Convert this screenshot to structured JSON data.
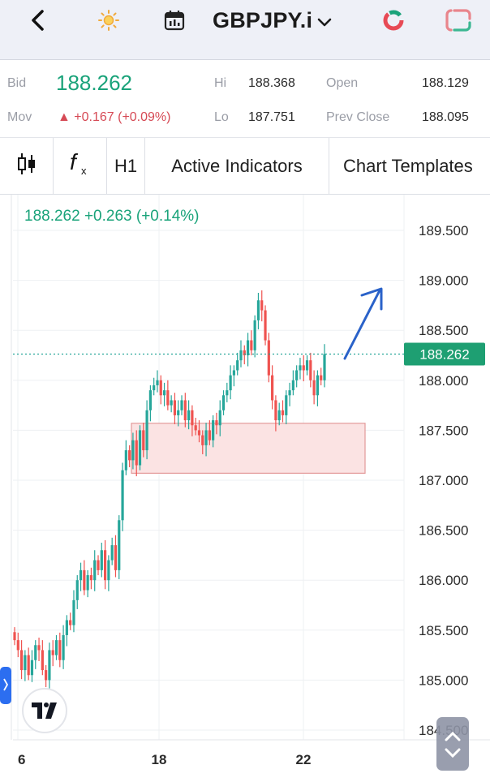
{
  "header": {
    "symbol": "GBPJPY.i",
    "icons": [
      "back-arrow-icon",
      "sun-icon",
      "calendar-icon",
      "chevron-down-icon",
      "ring-icon",
      "square-outline-icon"
    ]
  },
  "quote": {
    "bid_label": "Bid",
    "bid_value": "188.262",
    "mov_label": "Mov",
    "mov_value": "▲ +0.167 (+0.09%)",
    "hi_label": "Hi",
    "hi_value": "188.368",
    "lo_label": "Lo",
    "lo_value": "187.751",
    "open_label": "Open",
    "open_value": "188.129",
    "prev_close_label": "Prev Close",
    "prev_close_value": "188.095",
    "colors": {
      "bid": "#1aa37a",
      "mov": "#d64a55"
    }
  },
  "toolbar": {
    "timeframe": "H1",
    "active_indicators": "Active Indicators",
    "chart_templates": "Chart Templates"
  },
  "chart": {
    "legend": "188.262  +0.263 (+0.14%)",
    "price_tag": "188.262",
    "y_ticks": [
      "189.500",
      "189.000",
      "188.500",
      "188.000",
      "187.500",
      "187.000",
      "186.500",
      "186.000",
      "185.500",
      "185.000",
      "184.500"
    ],
    "x_ticks": [
      "6",
      "18",
      "22"
    ],
    "colors": {
      "up": "#26a69a",
      "down": "#ef5350",
      "zone_fill": "#fbe3e3",
      "zone_stroke": "#e39a9a",
      "arrow": "#2a62c9",
      "tag_bg": "#1e9f72"
    }
  },
  "chart_data": {
    "type": "candlestick",
    "y_axis": {
      "ylim": [
        184.5,
        189.5
      ],
      "tick_step": 0.5
    },
    "x_ticks": [
      "6",
      "18",
      "22"
    ],
    "last_price": 188.262,
    "support_zone": {
      "low": 187.07,
      "high": 187.57
    },
    "series_close": [
      185.4,
      185.3,
      185.1,
      185.25,
      185.05,
      185.2,
      185.35,
      185.3,
      185.1,
      185.0,
      185.3,
      185.25,
      185.4,
      185.2,
      185.45,
      185.6,
      185.55,
      185.8,
      186.0,
      186.1,
      185.9,
      186.05,
      186.0,
      186.2,
      186.1,
      186.3,
      186.0,
      186.2,
      186.35,
      186.1,
      186.6,
      187.1,
      187.3,
      187.2,
      187.4,
      187.15,
      187.5,
      187.3,
      187.7,
      187.9,
      187.95,
      188.0,
      187.85,
      187.9,
      187.75,
      187.8,
      187.65,
      187.7,
      187.8,
      187.6,
      187.7,
      187.55,
      187.5,
      187.45,
      187.35,
      187.5,
      187.4,
      187.6,
      187.55,
      187.7,
      187.85,
      187.9,
      188.05,
      188.1,
      188.2,
      188.3,
      188.25,
      188.4,
      188.3,
      188.6,
      188.8,
      188.7,
      188.4,
      188.05,
      187.8,
      187.6,
      187.7,
      187.65,
      187.85,
      187.9,
      188.0,
      188.1,
      188.15,
      188.1,
      188.2,
      188.0,
      187.85,
      188.05,
      188.0,
      188.262
    ]
  }
}
